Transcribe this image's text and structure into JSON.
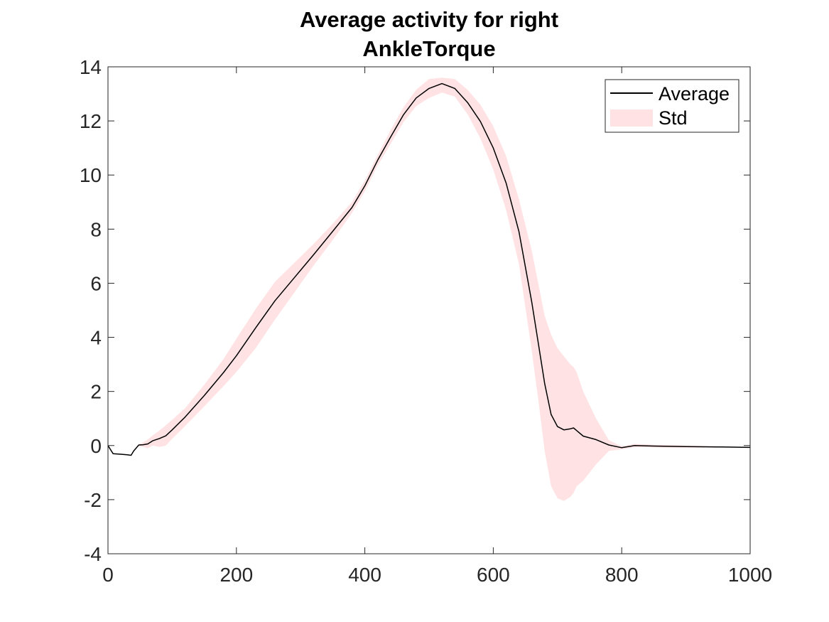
{
  "chart_data": {
    "type": "line",
    "title": "Average activity for right",
    "subtitle": "AnkleTorque",
    "xlabel": "",
    "ylabel": "",
    "xlim": [
      0,
      1000
    ],
    "ylim": [
      -4,
      14
    ],
    "xticks": [
      0,
      200,
      400,
      600,
      800,
      1000
    ],
    "yticks": [
      -4,
      -2,
      0,
      2,
      4,
      6,
      8,
      10,
      12,
      14
    ],
    "grid": false,
    "legend_position": "top-right",
    "series": [
      {
        "name": "Average",
        "kind": "line",
        "color": "#000000",
        "x": [
          0,
          8,
          20,
          30,
          36,
          40,
          48,
          55,
          62,
          70,
          80,
          90,
          100,
          120,
          150,
          180,
          200,
          230,
          260,
          290,
          320,
          350,
          380,
          400,
          420,
          440,
          460,
          480,
          500,
          520,
          540,
          560,
          580,
          600,
          620,
          640,
          660,
          670,
          680,
          690,
          700,
          710,
          720,
          725,
          730,
          740,
          760,
          780,
          800,
          820,
          850,
          900,
          950,
          1000
        ],
        "y": [
          0,
          -0.3,
          -0.32,
          -0.34,
          -0.36,
          -0.2,
          0.02,
          0.03,
          0.06,
          0.18,
          0.26,
          0.36,
          0.58,
          1.05,
          1.85,
          2.7,
          3.32,
          4.35,
          5.35,
          6.2,
          7.05,
          7.92,
          8.8,
          9.6,
          10.55,
          11.4,
          12.22,
          12.85,
          13.2,
          13.38,
          13.2,
          12.68,
          11.98,
          11.0,
          9.7,
          7.9,
          5.3,
          3.8,
          2.3,
          1.15,
          0.7,
          0.58,
          0.62,
          0.65,
          0.55,
          0.35,
          0.22,
          0.02,
          -0.08,
          0.0,
          -0.02,
          -0.04,
          -0.05,
          -0.07
        ]
      },
      {
        "name": "Std",
        "kind": "band",
        "color": "#ffe2e4",
        "x": [
          0,
          8,
          20,
          30,
          36,
          40,
          48,
          55,
          62,
          70,
          80,
          90,
          100,
          120,
          150,
          180,
          200,
          230,
          260,
          290,
          320,
          350,
          380,
          400,
          420,
          440,
          460,
          480,
          500,
          520,
          540,
          560,
          580,
          600,
          620,
          640,
          660,
          670,
          680,
          690,
          700,
          710,
          720,
          725,
          730,
          740,
          760,
          780,
          800,
          820,
          850,
          900,
          950,
          1000
        ],
        "upper": [
          0,
          -0.28,
          -0.3,
          -0.32,
          -0.34,
          -0.18,
          0.05,
          0.12,
          0.22,
          0.38,
          0.55,
          0.75,
          0.95,
          1.38,
          2.25,
          3.2,
          3.95,
          5.05,
          6.05,
          6.75,
          7.45,
          8.2,
          9.0,
          9.8,
          10.75,
          11.65,
          12.5,
          13.15,
          13.55,
          13.6,
          13.55,
          13.15,
          12.6,
          11.8,
          10.7,
          9.1,
          7.2,
          6.0,
          4.8,
          4.1,
          3.6,
          3.3,
          3.0,
          2.9,
          2.7,
          2.0,
          1.0,
          0.2,
          -0.03,
          0.06,
          0.03,
          0.0,
          -0.03,
          -0.06
        ],
        "lower": [
          0,
          -0.32,
          -0.34,
          -0.36,
          -0.38,
          -0.22,
          -0.02,
          -0.05,
          -0.1,
          0.0,
          -0.05,
          0.0,
          0.25,
          0.72,
          1.45,
          2.2,
          2.72,
          3.6,
          4.65,
          5.65,
          6.65,
          7.6,
          8.6,
          9.4,
          10.35,
          11.15,
          11.95,
          12.55,
          12.85,
          13.05,
          12.9,
          12.25,
          11.35,
          10.2,
          8.7,
          6.7,
          3.5,
          1.7,
          -0.2,
          -1.5,
          -1.95,
          -2.05,
          -1.9,
          -1.75,
          -1.5,
          -1.3,
          -0.7,
          -0.2,
          -0.14,
          -0.06,
          -0.07,
          -0.08,
          -0.07,
          -0.08
        ]
      }
    ]
  }
}
